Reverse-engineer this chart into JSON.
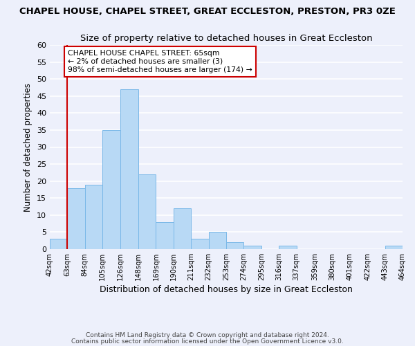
{
  "title": "CHAPEL HOUSE, CHAPEL STREET, GREAT ECCLESTON, PRESTON, PR3 0ZE",
  "subtitle": "Size of property relative to detached houses in Great Eccleston",
  "xlabel": "Distribution of detached houses by size in Great Eccleston",
  "ylabel": "Number of detached properties",
  "bin_edges": [
    42,
    63,
    84,
    105,
    126,
    148,
    169,
    190,
    211,
    232,
    253,
    274,
    295,
    316,
    337,
    359,
    380,
    401,
    422,
    443,
    464
  ],
  "bar_heights": [
    3,
    18,
    19,
    35,
    47,
    22,
    8,
    12,
    3,
    5,
    2,
    1,
    0,
    1,
    0,
    0,
    0,
    0,
    0,
    1
  ],
  "bar_color": "#b8d9f5",
  "bar_edge_color": "#7ab8e8",
  "tick_labels": [
    "42sqm",
    "63sqm",
    "84sqm",
    "105sqm",
    "126sqm",
    "148sqm",
    "169sqm",
    "190sqm",
    "211sqm",
    "232sqm",
    "253sqm",
    "274sqm",
    "295sqm",
    "316sqm",
    "337sqm",
    "359sqm",
    "380sqm",
    "401sqm",
    "422sqm",
    "443sqm",
    "464sqm"
  ],
  "ylim": [
    0,
    60
  ],
  "yticks": [
    0,
    5,
    10,
    15,
    20,
    25,
    30,
    35,
    40,
    45,
    50,
    55,
    60
  ],
  "vline_x": 63,
  "vline_color": "#cc0000",
  "annotation_title": "CHAPEL HOUSE CHAPEL STREET: 65sqm",
  "annotation_line1": "← 2% of detached houses are smaller (3)",
  "annotation_line2": "98% of semi-detached houses are larger (174) →",
  "annotation_box_color": "#ffffff",
  "annotation_box_edge": "#cc0000",
  "footer1": "Contains HM Land Registry data © Crown copyright and database right 2024.",
  "footer2": "Contains public sector information licensed under the Open Government Licence v3.0.",
  "background_color": "#edf0fb",
  "grid_color": "#ffffff",
  "title_fontsize": 9.5,
  "subtitle_fontsize": 9.5,
  "xlabel_fontsize": 9,
  "ylabel_fontsize": 8.5,
  "footer_fontsize": 6.5
}
